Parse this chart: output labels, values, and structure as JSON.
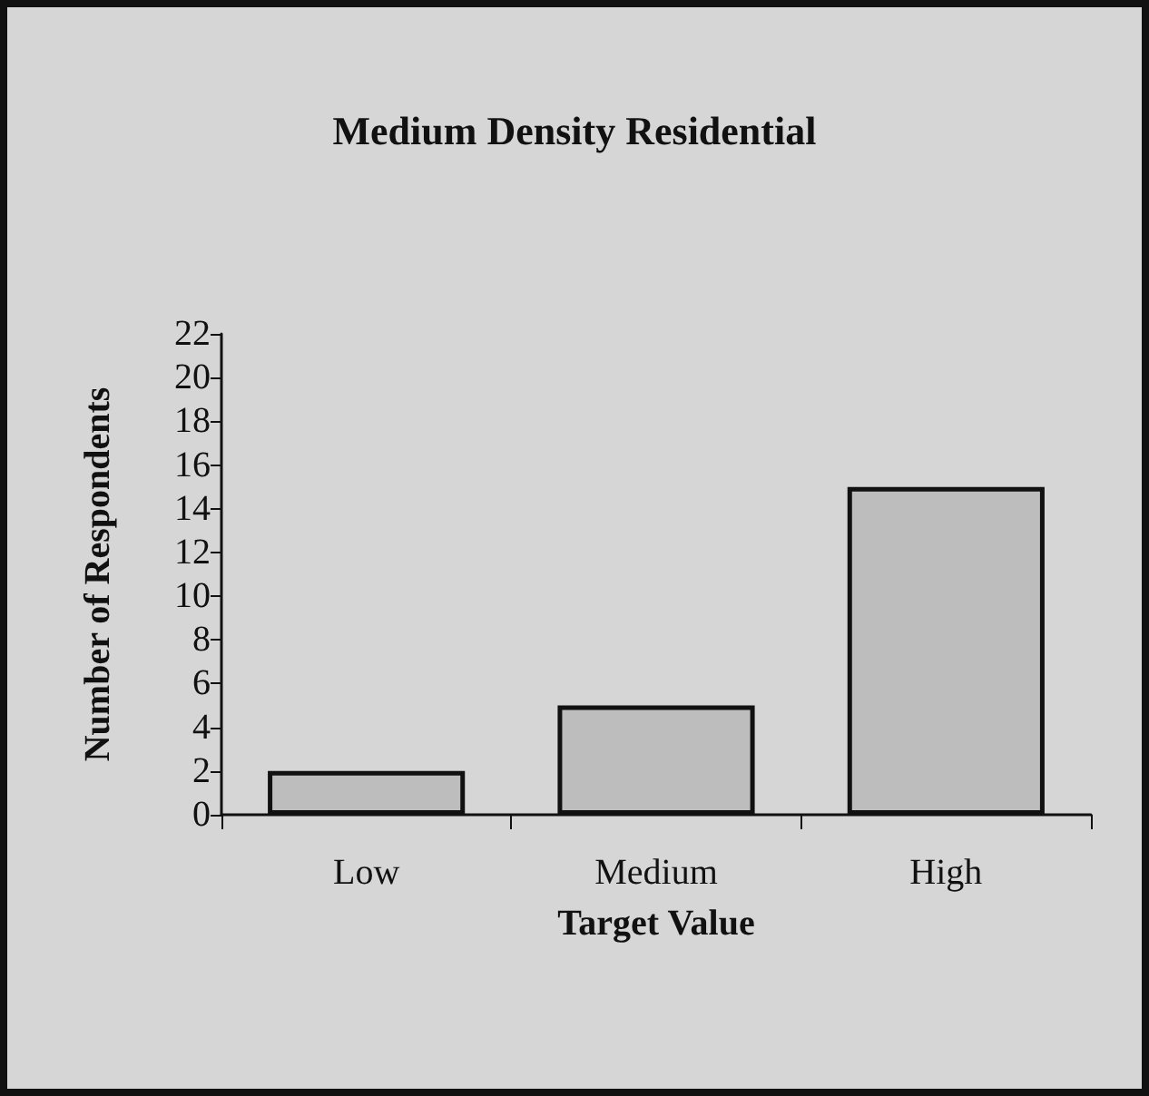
{
  "chart_data": {
    "type": "bar",
    "title": "Medium Density Residential",
    "xlabel": "Target Value",
    "ylabel": "Number of Respondents",
    "categories": [
      "Low",
      "Medium",
      "High"
    ],
    "values": [
      2,
      5,
      15
    ],
    "color": "#bdbdbd",
    "ylim": [
      0,
      22
    ],
    "yticks": [
      0,
      2,
      4,
      6,
      8,
      10,
      12,
      14,
      16,
      18,
      20,
      22
    ],
    "grid": false
  }
}
